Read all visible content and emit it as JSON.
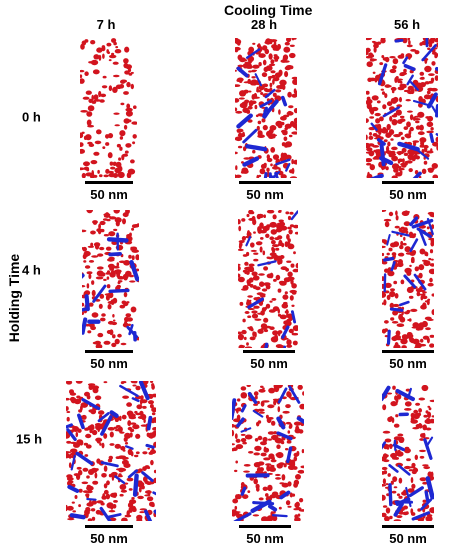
{
  "header": {
    "title": "Cooling Time",
    "columns": [
      "7 h",
      "28 h",
      "56 h"
    ]
  },
  "side": {
    "title": "Holding Time",
    "rows": [
      "0 h",
      "4 h",
      "15 h"
    ]
  },
  "scale_bar_label": "50 nm",
  "colors": {
    "red_phase": "#d2141e",
    "blue_phase": "#1e28d2",
    "background": "#ffffff"
  },
  "panels": [
    {
      "row": "0 h",
      "col": "7 h",
      "red_density": 0.45,
      "blue_count": 0
    },
    {
      "row": "0 h",
      "col": "28 h",
      "red_density": 0.8,
      "blue_count": 20
    },
    {
      "row": "0 h",
      "col": "56 h",
      "red_density": 0.85,
      "blue_count": 24
    },
    {
      "row": "4 h",
      "col": "7 h",
      "red_density": 0.6,
      "blue_count": 14
    },
    {
      "row": "4 h",
      "col": "28 h",
      "red_density": 0.8,
      "blue_count": 8
    },
    {
      "row": "4 h",
      "col": "56 h",
      "red_density": 0.75,
      "blue_count": 16
    },
    {
      "row": "15 h",
      "col": "7 h",
      "red_density": 0.7,
      "blue_count": 28
    },
    {
      "row": "15 h",
      "col": "28 h",
      "red_density": 0.65,
      "blue_count": 20
    },
    {
      "row": "15 h",
      "col": "56 h",
      "red_density": 0.6,
      "blue_count": 22
    }
  ]
}
